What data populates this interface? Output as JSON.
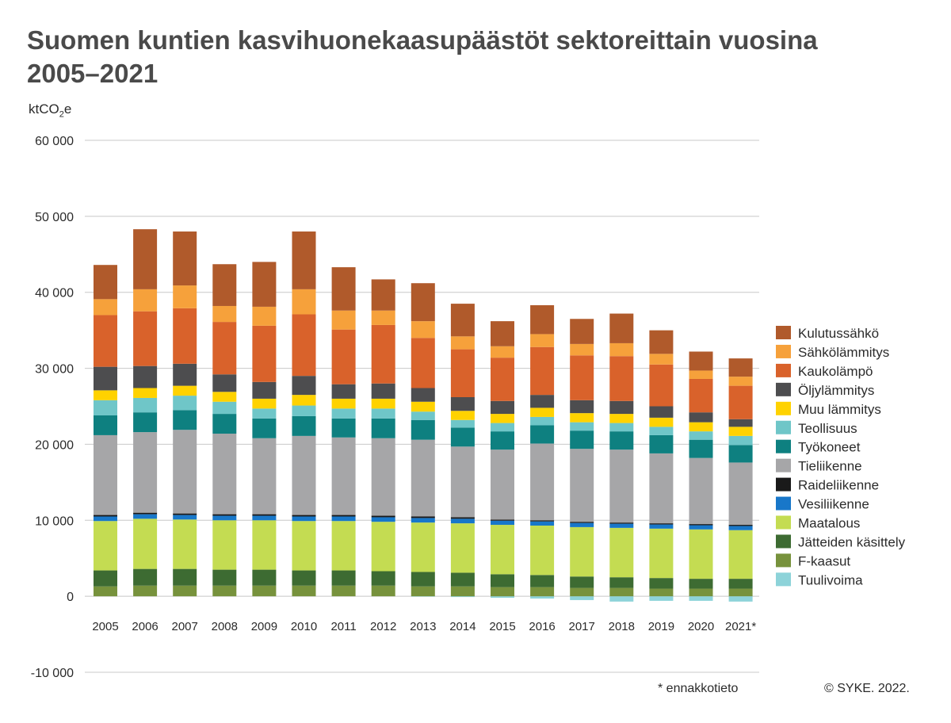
{
  "chart_data": {
    "type": "bar",
    "stacked": true,
    "title": "Suomen kuntien kasvihuonekaasupäästöt sektoreittain vuosina 2005–2021",
    "ylabel_prefix": "ktCO",
    "ylabel_sub": "2",
    "ylabel_suffix": "e",
    "ylim": [
      -10000,
      60000
    ],
    "yticks": [
      -10000,
      0,
      10000,
      20000,
      30000,
      40000,
      50000,
      60000
    ],
    "ytick_labels": [
      "-10 000",
      "0",
      "10 000",
      "20 000",
      "30 000",
      "40 000",
      "50 000",
      "60 000"
    ],
    "grid": true,
    "legend_position": "right",
    "categories": [
      "2005",
      "2006",
      "2007",
      "2008",
      "2009",
      "2010",
      "2011",
      "2012",
      "2013",
      "2014",
      "2015",
      "2016",
      "2017",
      "2018",
      "2019",
      "2020",
      "2021*"
    ],
    "series": [
      {
        "name": "Tuulivoima",
        "color": "#8dd3d9",
        "values": [
          0,
          0,
          0,
          0,
          0,
          0,
          0,
          0,
          -50,
          -100,
          -200,
          -300,
          -500,
          -700,
          -600,
          -600,
          -700
        ]
      },
      {
        "name": "F-kaasut",
        "color": "#77923c",
        "values": [
          1300,
          1400,
          1400,
          1400,
          1400,
          1400,
          1400,
          1400,
          1300,
          1300,
          1200,
          1200,
          1100,
          1100,
          1000,
          1000,
          1000
        ]
      },
      {
        "name": "Jätteiden käsittely",
        "color": "#3d6b32",
        "values": [
          2100,
          2200,
          2200,
          2100,
          2100,
          2000,
          2000,
          1900,
          1900,
          1800,
          1700,
          1600,
          1500,
          1400,
          1400,
          1300,
          1300
        ]
      },
      {
        "name": "Maatalous",
        "color": "#c4dc52",
        "values": [
          6500,
          6600,
          6500,
          6500,
          6500,
          6500,
          6500,
          6500,
          6500,
          6500,
          6500,
          6500,
          6500,
          6500,
          6500,
          6500,
          6400
        ]
      },
      {
        "name": "Vesiliikenne",
        "color": "#1877c9",
        "values": [
          600,
          600,
          600,
          600,
          600,
          600,
          600,
          600,
          600,
          600,
          550,
          550,
          550,
          550,
          550,
          550,
          550
        ]
      },
      {
        "name": "Raideliikenne",
        "color": "#1a1a1a",
        "values": [
          200,
          200,
          200,
          200,
          200,
          200,
          200,
          200,
          200,
          200,
          150,
          150,
          150,
          150,
          150,
          150,
          150
        ]
      },
      {
        "name": "Tieliikenne",
        "color": "#a6a6a8",
        "values": [
          10500,
          10600,
          11000,
          10600,
          10000,
          10400,
          10200,
          10200,
          10100,
          9300,
          9200,
          10100,
          9600,
          9600,
          9200,
          8700,
          8200
        ]
      },
      {
        "name": "Työkoneet",
        "color": "#0e8080",
        "values": [
          2600,
          2600,
          2600,
          2600,
          2600,
          2600,
          2500,
          2600,
          2600,
          2500,
          2400,
          2400,
          2400,
          2400,
          2400,
          2400,
          2300
        ]
      },
      {
        "name": "Teollisuus",
        "color": "#6fc6c8",
        "values": [
          2000,
          1900,
          1900,
          1600,
          1300,
          1400,
          1300,
          1300,
          1100,
          1000,
          1100,
          1100,
          1100,
          1100,
          1100,
          1100,
          1200
        ]
      },
      {
        "name": "Muu lämmitys",
        "color": "#ffd200",
        "values": [
          1300,
          1300,
          1300,
          1300,
          1300,
          1400,
          1300,
          1300,
          1300,
          1200,
          1200,
          1200,
          1200,
          1200,
          1200,
          1200,
          1200
        ]
      },
      {
        "name": "Öljylämmitys",
        "color": "#4d4d4f",
        "values": [
          3100,
          2900,
          2900,
          2300,
          2200,
          2500,
          1900,
          2000,
          1800,
          1800,
          1700,
          1700,
          1700,
          1700,
          1500,
          1300,
          1000
        ]
      },
      {
        "name": "Kaukolämpö",
        "color": "#d9622b",
        "values": [
          6800,
          7200,
          7300,
          6900,
          7400,
          8100,
          7200,
          7700,
          6600,
          6300,
          5700,
          6300,
          5900,
          5900,
          5500,
          4400,
          4400
        ]
      },
      {
        "name": "Sähkölämmitys",
        "color": "#f6a13b",
        "values": [
          2100,
          2900,
          3000,
          2100,
          2500,
          3300,
          2500,
          1900,
          2200,
          1700,
          1500,
          1700,
          1500,
          1700,
          1400,
          1100,
          1200
        ]
      },
      {
        "name": "Kulutussähkö",
        "color": "#b05a2b",
        "values": [
          4500,
          7900,
          7100,
          5500,
          5900,
          7600,
          5700,
          4100,
          5000,
          4300,
          3300,
          3800,
          3300,
          3900,
          3100,
          2500,
          2400
        ]
      }
    ],
    "legend_order": [
      "Kulutussähkö",
      "Sähkölämmitys",
      "Kaukolämpö",
      "Öljylämmitys",
      "Muu lämmitys",
      "Teollisuus",
      "Työkoneet",
      "Tieliikenne",
      "Raideliikenne",
      "Vesiliikenne",
      "Maatalous",
      "Jätteiden käsittely",
      "F-kaasut",
      "Tuulivoima"
    ]
  },
  "footnote": "* ennakkotieto",
  "credit": "© SYKE. 2022."
}
